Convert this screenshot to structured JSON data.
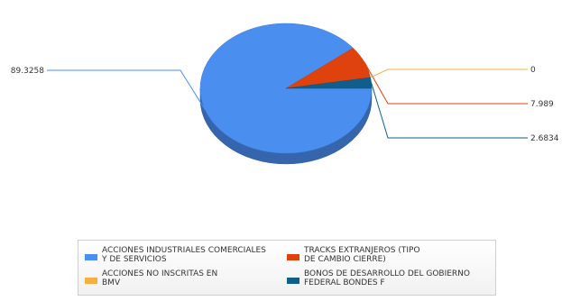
{
  "chart_data": {
    "type": "pie",
    "style": "3d",
    "title": "",
    "slices": [
      {
        "label_lines": [
          "ACCIONES INDUSTRIALES COMERCIALES",
          "Y DE SERVICIOS"
        ],
        "value": 89.3258,
        "value_label": "89.3258",
        "color": "#4a8ef0"
      },
      {
        "label_lines": [
          "TRACKS EXTRANJEROS (TIPO",
          "DE CAMBIO CIERRE)"
        ],
        "value": 7.989,
        "value_label": "7.989",
        "color": "#e0420e"
      },
      {
        "label_lines": [
          "ACCIONES NO INSCRITAS EN",
          "BMV"
        ],
        "value": 0,
        "value_label": "0",
        "color": "#f5b041"
      },
      {
        "label_lines": [
          "BONOS DE DESARROLLO DEL GOBIERNO",
          "FEDERAL BONDES F"
        ],
        "value": 2.6834,
        "value_label": "2.6834",
        "color": "#0f5f8a"
      }
    ],
    "legend": {
      "position": "bottom",
      "columns": 2
    }
  }
}
